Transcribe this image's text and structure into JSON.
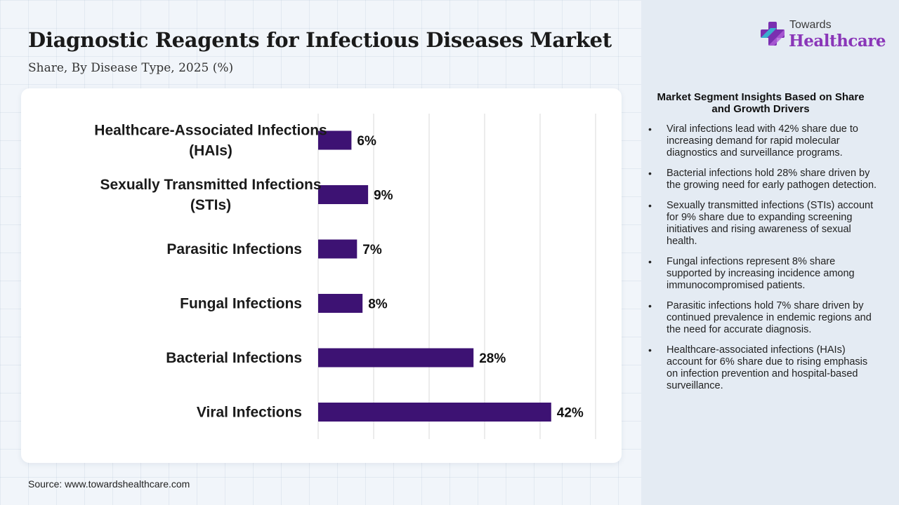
{
  "header": {
    "title": "Diagnostic Reagents for Infectious Diseases Market",
    "subtitle": "Share, By Disease Type, 2025 (%)"
  },
  "brand": {
    "line1": "Towards",
    "line2": "Healthcare",
    "logo_icon": "medical-cross-icon",
    "accent_color": "#8a36b8"
  },
  "chart_data": {
    "type": "bar",
    "orientation": "horizontal",
    "categories": [
      "Healthcare-Associated Infections (HAIs)",
      "Sexually Transmitted Infections (STIs)",
      "Parasitic Infections",
      "Fungal Infections",
      "Bacterial Infections",
      "Viral Infections"
    ],
    "category_lines": [
      [
        "Healthcare-Associated Infections",
        "(HAIs)"
      ],
      [
        "Sexually Transmitted Infections",
        "(STIs)"
      ],
      [
        "Parasitic Infections"
      ],
      [
        "Fungal Infections"
      ],
      [
        "Bacterial Infections"
      ],
      [
        "Viral Infections"
      ]
    ],
    "values": [
      6,
      9,
      7,
      8,
      28,
      42
    ],
    "data_labels": [
      "6%",
      "9%",
      "7%",
      "8%",
      "28%",
      "42%"
    ],
    "bar_color": "#3d1273",
    "xlim": [
      0,
      50
    ],
    "grid": true,
    "legend": "none"
  },
  "insights": {
    "title": "Market Segment Insights Based on Share and Growth Drivers",
    "bullet_symbol": "•",
    "items": [
      "Viral infections lead with 42% share due to increasing demand for rapid molecular diagnostics and surveillance programs.",
      "Bacterial infections hold 28% share driven by the growing need for early pathogen detection.",
      "Sexually transmitted infections (STIs) account for 9% share due to expanding screening initiatives and rising awareness of sexual health.",
      "Fungal infections represent 8% share supported by increasing incidence among immunocompromised patients.",
      "Parasitic infections hold 7% share driven by continued prevalence in endemic regions and the need for accurate diagnosis.",
      "Healthcare-associated infections (HAIs) account for 6% share due to rising emphasis on infection prevention and hospital-based surveillance."
    ]
  },
  "footer": {
    "source": "Source: www.towardshealthcare.com"
  }
}
